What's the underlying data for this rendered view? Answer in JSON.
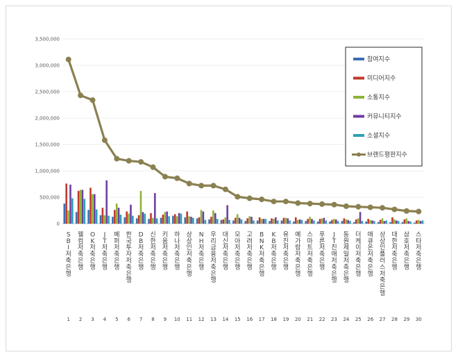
{
  "chart_data": {
    "type": "bar",
    "title": "",
    "xlabel": "",
    "ylabel": "",
    "ylim": [
      0,
      3500000
    ],
    "y_ticks": [
      "0",
      "500,000",
      "1,000,000",
      "1,500,000",
      "2,000,000",
      "2,500,000",
      "3,000,000",
      "3,500,000"
    ],
    "legend_position": "top-right",
    "categories": [
      "SBI저축은행",
      "웰컴저축은행",
      "OK저축은행",
      "JT저축은행",
      "페퍼저축은행",
      "한국투자저축은행",
      "DB저축은행",
      "신한저축은행",
      "키움저축은행",
      "하나저축은행",
      "상상인저축은행",
      "NH저축은행",
      "우리금융저축은행",
      "대신저축은행",
      "모아저축은행",
      "고려저축은행",
      "BNK저축은행",
      "KB저축은행",
      "유진저축은행",
      "예가람저축은행",
      "스마트저축은행",
      "푸른저축은행",
      "JT친애저축은행",
      "동원제일저축은행",
      "더케이저축은행",
      "애큐온저축은행",
      "상상인플러스저축은행",
      "대한저축은행",
      "삼호저축은행",
      "스타저축은행"
    ],
    "ranks": [
      "1",
      "2",
      "3",
      "4",
      "5",
      "6",
      "7",
      "8",
      "9",
      "10",
      "11",
      "12",
      "13",
      "14",
      "15",
      "16",
      "17",
      "18",
      "19",
      "20",
      "21",
      "22",
      "23",
      "24",
      "25",
      "26",
      "27",
      "28",
      "29",
      "30"
    ],
    "series": [
      {
        "name": "참여지수",
        "color": "#3c6eb4",
        "values": [
          380000,
          220000,
          260000,
          160000,
          130000,
          120000,
          100000,
          90000,
          110000,
          150000,
          120000,
          100000,
          80000,
          70000,
          60000,
          50000,
          60000,
          50000,
          60000,
          40000,
          50000,
          40000,
          40000,
          50000,
          30000,
          40000,
          30000,
          30000,
          30000,
          20000
        ]
      },
      {
        "name": "미디어지수",
        "color": "#c0392b",
        "values": [
          760000,
          620000,
          680000,
          300000,
          260000,
          230000,
          160000,
          200000,
          170000,
          180000,
          230000,
          120000,
          130000,
          80000,
          110000,
          100000,
          120000,
          100000,
          110000,
          120000,
          90000,
          90000,
          70000,
          100000,
          80000,
          90000,
          70000,
          120000,
          80000,
          60000
        ]
      },
      {
        "name": "소통지수",
        "color": "#8db33a",
        "values": [
          250000,
          640000,
          560000,
          160000,
          380000,
          190000,
          620000,
          110000,
          220000,
          140000,
          140000,
          260000,
          250000,
          120000,
          180000,
          140000,
          90000,
          90000,
          110000,
          70000,
          130000,
          100000,
          90000,
          80000,
          100000,
          70000,
          100000,
          80000,
          100000,
          70000
        ]
      },
      {
        "name": "커뮤니티지수",
        "color": "#6d3fa1",
        "values": [
          740000,
          640000,
          560000,
          820000,
          300000,
          360000,
          220000,
          580000,
          230000,
          200000,
          130000,
          230000,
          200000,
          350000,
          110000,
          130000,
          90000,
          120000,
          100000,
          80000,
          90000,
          110000,
          80000,
          70000,
          220000,
          60000,
          50000,
          60000,
          50000,
          50000
        ]
      },
      {
        "name": "소셜지수",
        "color": "#2fa0b5",
        "values": [
          480000,
          470000,
          270000,
          150000,
          170000,
          150000,
          190000,
          100000,
          140000,
          190000,
          110000,
          70000,
          90000,
          70000,
          80000,
          60000,
          90000,
          60000,
          60000,
          70000,
          60000,
          60000,
          50000,
          50000,
          50000,
          50000,
          60000,
          50000,
          40000,
          60000
        ]
      },
      {
        "name": "브랜드평판지수",
        "color": "#8a8050",
        "values": [
          3110000,
          2430000,
          2340000,
          1580000,
          1230000,
          1190000,
          1170000,
          1070000,
          890000,
          860000,
          760000,
          720000,
          720000,
          650000,
          510000,
          480000,
          460000,
          420000,
          420000,
          390000,
          380000,
          370000,
          360000,
          330000,
          320000,
          310000,
          300000,
          270000,
          240000,
          230000
        ]
      }
    ]
  }
}
